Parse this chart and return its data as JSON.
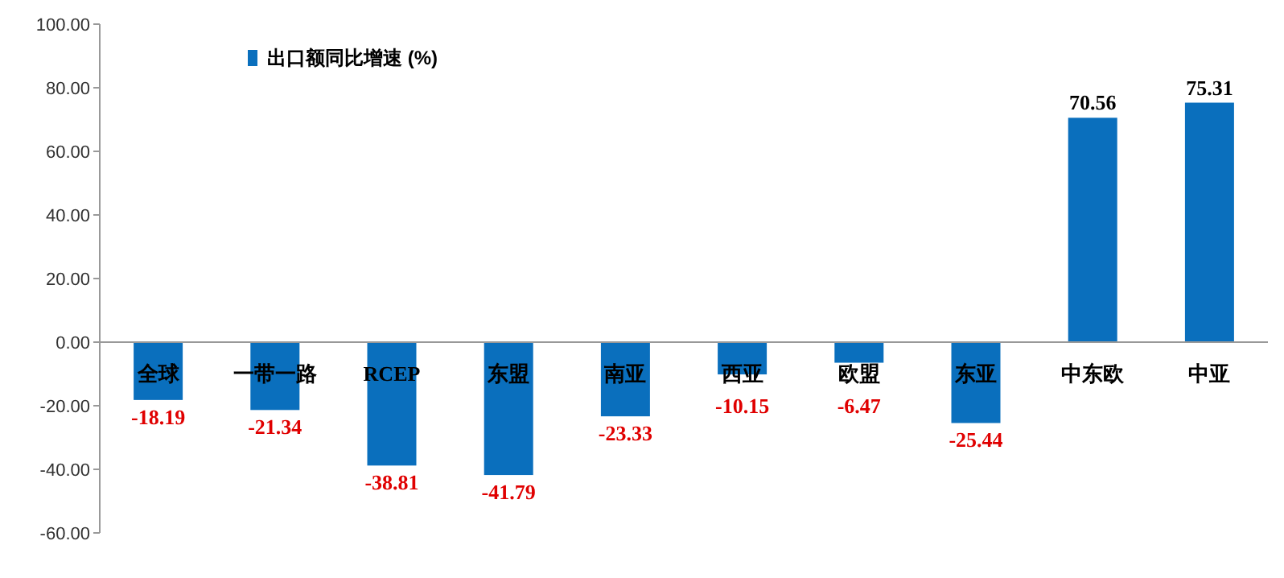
{
  "chart_data": {
    "type": "bar",
    "categories": [
      "全球",
      "一带一路",
      "RCEP",
      "东盟",
      "南亚",
      "西亚",
      "欧盟",
      "东亚",
      "中东欧",
      "中亚"
    ],
    "series": [
      {
        "name": "出口额同比增速 (%)",
        "color": "#0a6fbd",
        "values": [
          -18.19,
          -21.34,
          -38.81,
          -41.79,
          -23.33,
          -10.15,
          -6.47,
          -25.44,
          70.56,
          75.31
        ],
        "value_labels": [
          "-18.19",
          "-21.34",
          "-38.81",
          "-41.79",
          "-23.33",
          "-10.15",
          "-6.47",
          "-25.44",
          "70.56",
          "75.31"
        ]
      }
    ],
    "ylim": [
      -60,
      100
    ],
    "yticks": [
      {
        "value": -60,
        "label": "-60.00"
      },
      {
        "value": -40,
        "label": "-40.00"
      },
      {
        "value": -20,
        "label": "-20.00"
      },
      {
        "value": 0,
        "label": "0.00"
      },
      {
        "value": 20,
        "label": "20.00"
      },
      {
        "value": 40,
        "label": "40.00"
      },
      {
        "value": 60,
        "label": "60.00"
      },
      {
        "value": 80,
        "label": "80.00"
      },
      {
        "value": 100,
        "label": "100.00"
      }
    ],
    "data_labels": true,
    "legend": "top left"
  }
}
